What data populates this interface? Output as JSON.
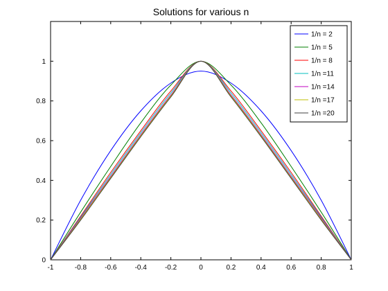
{
  "chart_data": {
    "type": "line",
    "title": "Solutions for various n",
    "xlabel": "",
    "ylabel": "",
    "xlim": [
      -1,
      1
    ],
    "ylim": [
      0,
      1.2
    ],
    "xticks": [
      "-1",
      "-0.8",
      "-0.6",
      "-0.4",
      "-0.2",
      "0",
      "0.2",
      "0.4",
      "0.6",
      "0.8",
      "1"
    ],
    "yticks": [
      "0",
      "0.2",
      "0.4",
      "0.6",
      "0.8",
      "1"
    ],
    "grid": false,
    "legend_position": "top-right",
    "series": [
      {
        "name": "1/n = 2",
        "color": "#0000ff",
        "x": [
          -1,
          -0.8,
          -0.6,
          -0.4,
          -0.2,
          0,
          0.2,
          0.4,
          0.6,
          0.8,
          1
        ],
        "y": [
          0,
          0.3,
          0.55,
          0.75,
          0.89,
          0.95,
          0.89,
          0.75,
          0.55,
          0.3,
          0
        ]
      },
      {
        "name": "1/n = 5",
        "color": "#007f00",
        "x": [
          -1,
          -0.8,
          -0.6,
          -0.4,
          -0.2,
          0,
          0.2,
          0.4,
          0.6,
          0.8,
          1
        ],
        "y": [
          0,
          0.24,
          0.47,
          0.69,
          0.88,
          1.0,
          0.88,
          0.69,
          0.47,
          0.24,
          0
        ]
      },
      {
        "name": "1/n = 8",
        "color": "#ff0000",
        "x": [
          -1,
          -0.8,
          -0.6,
          -0.4,
          -0.2,
          0,
          0.2,
          0.4,
          0.6,
          0.8,
          1
        ],
        "y": [
          0,
          0.22,
          0.44,
          0.65,
          0.85,
          1.0,
          0.85,
          0.65,
          0.44,
          0.22,
          0
        ]
      },
      {
        "name": "1/n =11",
        "color": "#00bfbf",
        "x": [
          -1,
          -0.8,
          -0.6,
          -0.4,
          -0.2,
          0,
          0.2,
          0.4,
          0.6,
          0.8,
          1
        ],
        "y": [
          0,
          0.215,
          0.43,
          0.64,
          0.84,
          1.0,
          0.84,
          0.64,
          0.43,
          0.215,
          0
        ]
      },
      {
        "name": "1/n =14",
        "color": "#bf00bf",
        "x": [
          -1,
          -0.8,
          -0.6,
          -0.4,
          -0.2,
          0,
          0.2,
          0.4,
          0.6,
          0.8,
          1
        ],
        "y": [
          0,
          0.21,
          0.42,
          0.63,
          0.83,
          1.0,
          0.83,
          0.63,
          0.42,
          0.21,
          0
        ]
      },
      {
        "name": "1/n =17",
        "color": "#bfbf00",
        "x": [
          -1,
          -0.8,
          -0.6,
          -0.4,
          -0.2,
          0,
          0.2,
          0.4,
          0.6,
          0.8,
          1
        ],
        "y": [
          0,
          0.205,
          0.415,
          0.625,
          0.825,
          1.0,
          0.825,
          0.625,
          0.415,
          0.205,
          0
        ]
      },
      {
        "name": "1/n =20",
        "color": "#3f3f3f",
        "x": [
          -1,
          -0.8,
          -0.6,
          -0.4,
          -0.2,
          0,
          0.2,
          0.4,
          0.6,
          0.8,
          1
        ],
        "y": [
          0,
          0.2,
          0.41,
          0.62,
          0.82,
          1.0,
          0.82,
          0.62,
          0.41,
          0.2,
          0
        ]
      }
    ]
  }
}
